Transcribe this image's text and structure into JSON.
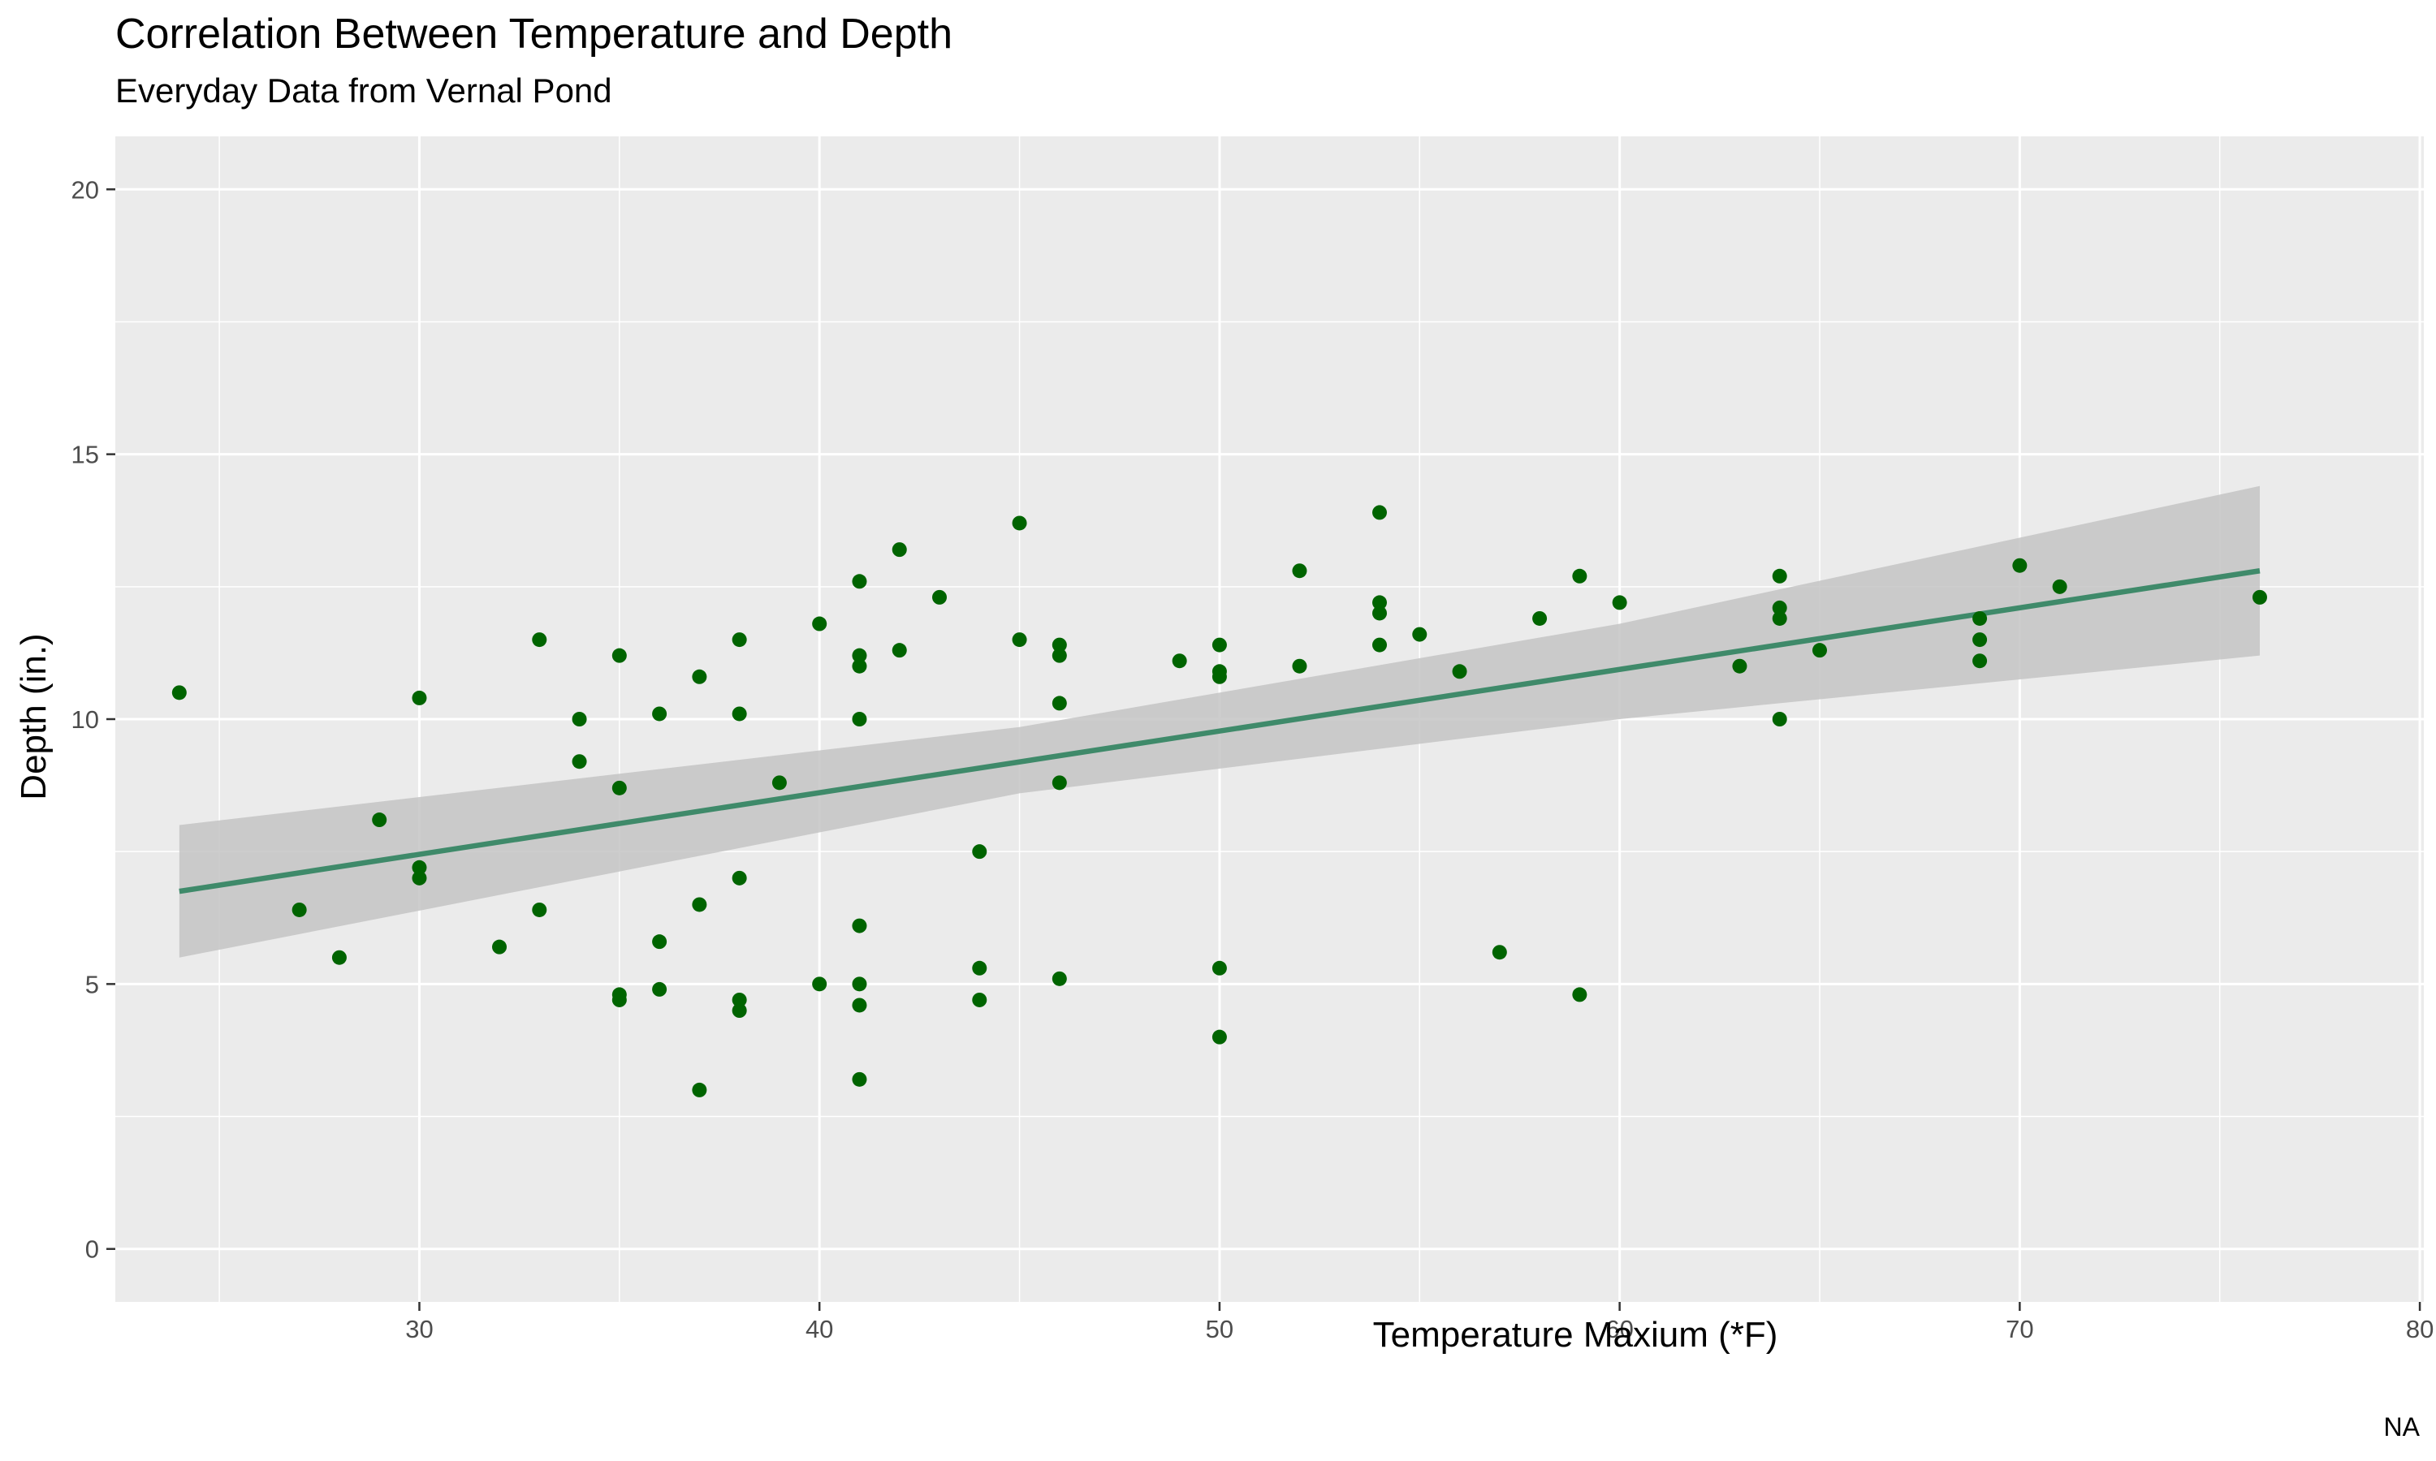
{
  "chart_data": {
    "type": "scatter",
    "title": "Correlation Between Temperature and Depth",
    "subtitle": "Everyday Data from Vernal Pond",
    "xlabel": "Temperature Maxium (*F)",
    "ylabel": "Depth (in.)",
    "caption": "NA",
    "xlim": [
      22.4,
      80.1
    ],
    "ylim": [
      -1.0,
      21.0
    ],
    "x_ticks": [
      30,
      40,
      50,
      60,
      70,
      80
    ],
    "y_ticks": [
      0,
      5,
      10,
      15,
      20
    ],
    "grid": true,
    "legend": "none",
    "colors": {
      "panel": "#ebebeb",
      "grid": "#ffffff",
      "point": "#006400",
      "trend": "#3f8a6a",
      "band": "#c4c4c4"
    },
    "points": [
      [
        24,
        10.5
      ],
      [
        27,
        6.4
      ],
      [
        28,
        5.5
      ],
      [
        29,
        8.1
      ],
      [
        30,
        10.4
      ],
      [
        30,
        7.2
      ],
      [
        30,
        7.0
      ],
      [
        32,
        5.7
      ],
      [
        33,
        11.5
      ],
      [
        33,
        6.4
      ],
      [
        34,
        10.0
      ],
      [
        34,
        9.2
      ],
      [
        35,
        11.2
      ],
      [
        35,
        8.7
      ],
      [
        35,
        4.8
      ],
      [
        35,
        4.7
      ],
      [
        36,
        10.1
      ],
      [
        36,
        5.8
      ],
      [
        36,
        4.9
      ],
      [
        37,
        10.8
      ],
      [
        37,
        6.5
      ],
      [
        37,
        3.0
      ],
      [
        38,
        11.5
      ],
      [
        38,
        10.1
      ],
      [
        38,
        7.0
      ],
      [
        38,
        4.7
      ],
      [
        38,
        4.5
      ],
      [
        39,
        8.8
      ],
      [
        40,
        11.8
      ],
      [
        40,
        5.0
      ],
      [
        41,
        12.6
      ],
      [
        41,
        11.2
      ],
      [
        41,
        11.0
      ],
      [
        41,
        10.0
      ],
      [
        41,
        6.1
      ],
      [
        41,
        5.0
      ],
      [
        41,
        4.6
      ],
      [
        41,
        3.2
      ],
      [
        42,
        13.2
      ],
      [
        42,
        11.3
      ],
      [
        43,
        12.3
      ],
      [
        44,
        7.5
      ],
      [
        44,
        5.3
      ],
      [
        44,
        4.7
      ],
      [
        45,
        13.7
      ],
      [
        45,
        11.5
      ],
      [
        46,
        11.4
      ],
      [
        46,
        11.2
      ],
      [
        46,
        10.3
      ],
      [
        46,
        8.8
      ],
      [
        46,
        5.1
      ],
      [
        49,
        11.1
      ],
      [
        50,
        11.4
      ],
      [
        50,
        10.9
      ],
      [
        50,
        10.8
      ],
      [
        50,
        5.3
      ],
      [
        50,
        4.0
      ],
      [
        52,
        12.8
      ],
      [
        52,
        11.0
      ],
      [
        54,
        13.9
      ],
      [
        54,
        12.2
      ],
      [
        54,
        12.0
      ],
      [
        54,
        11.4
      ],
      [
        55,
        11.6
      ],
      [
        56,
        10.9
      ],
      [
        57,
        5.6
      ],
      [
        58,
        11.9
      ],
      [
        59,
        12.7
      ],
      [
        59,
        4.8
      ],
      [
        60,
        12.2
      ],
      [
        63,
        11.0
      ],
      [
        64,
        12.7
      ],
      [
        64,
        12.1
      ],
      [
        64,
        11.9
      ],
      [
        64,
        10.0
      ],
      [
        65,
        11.3
      ],
      [
        69,
        11.9
      ],
      [
        69,
        11.5
      ],
      [
        69,
        11.1
      ],
      [
        70,
        12.9
      ],
      [
        71,
        12.5
      ],
      [
        76,
        12.3
      ]
    ],
    "trend": {
      "x": [
        24,
        76
      ],
      "y": [
        6.75,
        12.8
      ],
      "upper": [
        [
          24,
          8.0
        ],
        [
          45,
          9.85
        ],
        [
          60,
          11.8
        ],
        [
          76,
          14.4
        ]
      ],
      "lower": [
        [
          24,
          5.5
        ],
        [
          45,
          8.6
        ],
        [
          60,
          10.0
        ],
        [
          76,
          11.2
        ]
      ]
    }
  }
}
